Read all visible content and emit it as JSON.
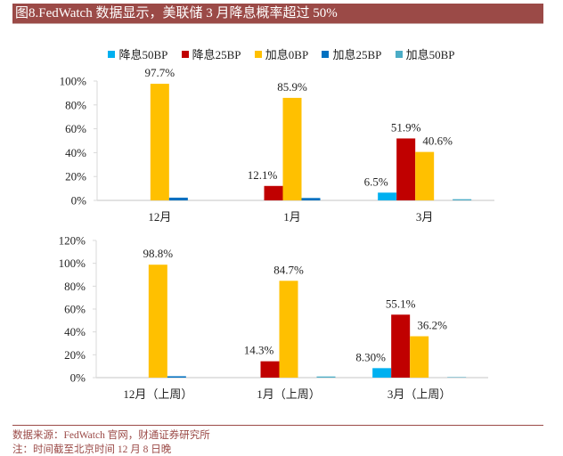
{
  "title": "图8.FedWatch 数据显示，美联储 3 月降息概率超过 50%",
  "legend": [
    {
      "label": "降息50BP",
      "color": "#00b0f0"
    },
    {
      "label": "降息25BP",
      "color": "#c00000"
    },
    {
      "label": "加息0BP",
      "color": "#ffc000"
    },
    {
      "label": "加息25BP",
      "color": "#0070c0"
    },
    {
      "label": "加息50BP",
      "color": "#4bacc6"
    }
  ],
  "footer": {
    "source": "数据来源：FedWatch 官网，财通证券研究所",
    "note": "注：时间截至北京时间 12 月 8 日晚"
  },
  "chart_data": [
    {
      "type": "bar",
      "title": "",
      "categories": [
        "12月",
        "1月",
        "3月"
      ],
      "ylim": [
        0,
        100
      ],
      "yticks": [
        "0%",
        "20%",
        "40%",
        "60%",
        "80%",
        "100%"
      ],
      "ytick_values": [
        0,
        20,
        40,
        60,
        80,
        100
      ],
      "series": [
        {
          "name": "降息50BP",
          "values": [
            0,
            0,
            6.5
          ],
          "labels": [
            "",
            "",
            "6.5%"
          ]
        },
        {
          "name": "降息25BP",
          "values": [
            0,
            12.1,
            51.9
          ],
          "labels": [
            "",
            "12.1%",
            "51.9%"
          ]
        },
        {
          "name": "加息0BP",
          "values": [
            97.7,
            85.9,
            40.6
          ],
          "labels": [
            "97.7%",
            "85.9%",
            "40.6%"
          ]
        },
        {
          "name": "加息25BP",
          "values": [
            2.3,
            2.0,
            0
          ],
          "labels": [
            "",
            "",
            ""
          ]
        },
        {
          "name": "加息50BP",
          "values": [
            0,
            0,
            1.0
          ],
          "labels": [
            "",
            "",
            ""
          ]
        }
      ],
      "legend_position": "top-center"
    },
    {
      "type": "bar",
      "title": "",
      "categories": [
        "12月（上周）",
        "1月（上周）",
        "3月（上周）"
      ],
      "ylim": [
        0,
        120
      ],
      "yticks": [
        "0%",
        "20%",
        "40%",
        "60%",
        "80%",
        "100%",
        "120%"
      ],
      "ytick_values": [
        0,
        20,
        40,
        60,
        80,
        100,
        120
      ],
      "series": [
        {
          "name": "降息50BP",
          "values": [
            0,
            0,
            8.3
          ],
          "labels": [
            "",
            "",
            "8.30%"
          ]
        },
        {
          "name": "降息25BP",
          "values": [
            0,
            14.3,
            55.1
          ],
          "labels": [
            "",
            "14.3%",
            "55.1%"
          ]
        },
        {
          "name": "加息0BP",
          "values": [
            98.8,
            84.7,
            36.2
          ],
          "labels": [
            "98.8%",
            "84.7%",
            "36.2%"
          ]
        },
        {
          "name": "加息25BP",
          "values": [
            1.2,
            0,
            0
          ],
          "labels": [
            "",
            "",
            ""
          ]
        },
        {
          "name": "加息50BP",
          "values": [
            0,
            1.0,
            0.4
          ],
          "labels": [
            "",
            "",
            ""
          ]
        }
      ],
      "legend_position": "top-center"
    }
  ]
}
